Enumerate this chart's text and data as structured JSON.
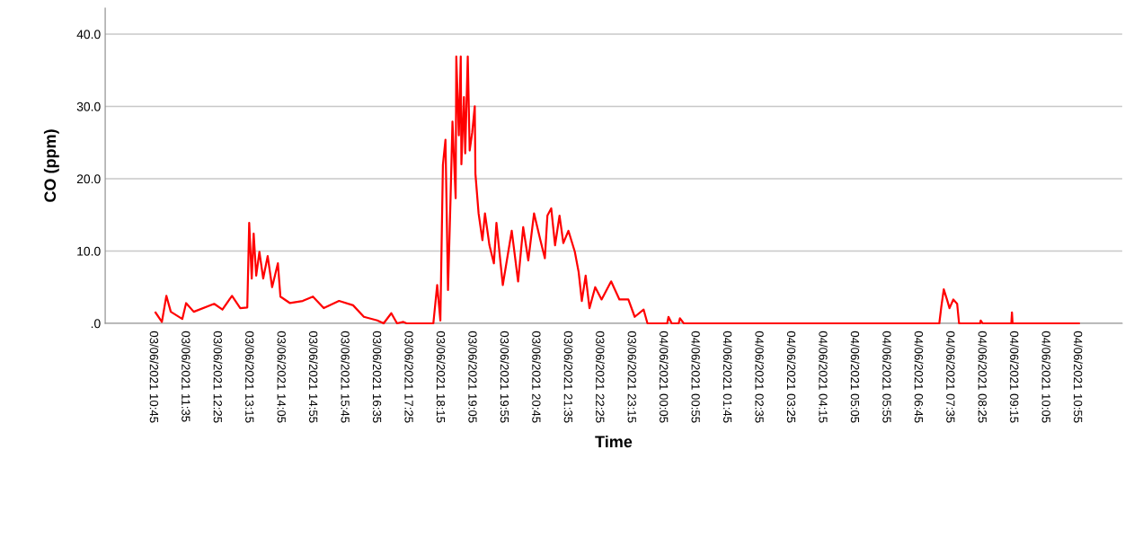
{
  "chart_data": {
    "type": "line",
    "xlabel": "Time",
    "ylabel": "CO (ppm)",
    "x": [
      "2021-06-03T10:49",
      "2021-06-03T10:59",
      "2021-06-03T11:06",
      "2021-06-03T11:13",
      "2021-06-03T11:31",
      "2021-06-03T11:37",
      "2021-06-03T11:49",
      "2021-06-03T12:21",
      "2021-06-03T12:34",
      "2021-06-03T12:49",
      "2021-06-03T13:02",
      "2021-06-03T13:13",
      "2021-06-03T13:16",
      "2021-06-03T13:20",
      "2021-06-03T13:23",
      "2021-06-03T13:27",
      "2021-06-03T13:32",
      "2021-06-03T13:38",
      "2021-06-03T13:45",
      "2021-06-03T13:52",
      "2021-06-03T14:01",
      "2021-06-03T14:05",
      "2021-06-03T14:20",
      "2021-06-03T14:40",
      "2021-06-03T14:56",
      "2021-06-03T15:13",
      "2021-06-03T15:37",
      "2021-06-03T15:59",
      "2021-06-03T16:16",
      "2021-06-03T16:37",
      "2021-06-03T16:47",
      "2021-06-03T16:59",
      "2021-06-03T17:08",
      "2021-06-03T17:18",
      "2021-06-03T17:23",
      "2021-06-03T18:05",
      "2021-06-03T18:11",
      "2021-06-03T18:16",
      "2021-06-03T18:20",
      "2021-06-03T18:24",
      "2021-06-03T18:28",
      "2021-06-03T18:32",
      "2021-06-03T18:35",
      "2021-06-03T18:40",
      "2021-06-03T18:41",
      "2021-06-03T18:45",
      "2021-06-03T18:48",
      "2021-06-03T18:49",
      "2021-06-03T18:53",
      "2021-06-03T18:55",
      "2021-06-03T18:59",
      "2021-06-03T19:02",
      "2021-06-03T19:06",
      "2021-06-03T19:10",
      "2021-06-03T19:11",
      "2021-06-03T19:16",
      "2021-06-03T19:22",
      "2021-06-03T19:26",
      "2021-06-03T19:33",
      "2021-06-03T19:40",
      "2021-06-03T19:44",
      "2021-06-03T19:54",
      "2021-06-03T20:08",
      "2021-06-03T20:18",
      "2021-06-03T20:26",
      "2021-06-03T20:34",
      "2021-06-03T20:43",
      "2021-06-03T20:53",
      "2021-06-03T21:00",
      "2021-06-03T21:04",
      "2021-06-03T21:10",
      "2021-06-03T21:16",
      "2021-06-03T21:23",
      "2021-06-03T21:29",
      "2021-06-03T21:37",
      "2021-06-03T21:47",
      "2021-06-03T21:53",
      "2021-06-03T21:58",
      "2021-06-03T22:04",
      "2021-06-03T22:10",
      "2021-06-03T22:19",
      "2021-06-03T22:29",
      "2021-06-03T22:44",
      "2021-06-03T22:57",
      "2021-06-03T23:11",
      "2021-06-03T23:21",
      "2021-06-03T23:35",
      "2021-06-03T23:41",
      "2021-06-04T00:12",
      "2021-06-04T00:14",
      "2021-06-04T00:19",
      "2021-06-04T00:30",
      "2021-06-04T00:32",
      "2021-06-04T00:38",
      "2021-06-04T07:19",
      "2021-06-04T07:22",
      "2021-06-04T07:26",
      "2021-06-04T07:31",
      "2021-06-04T07:35",
      "2021-06-04T07:41",
      "2021-06-04T07:47",
      "2021-06-04T07:50",
      "2021-06-04T08:23",
      "2021-06-04T08:24",
      "2021-06-04T08:27",
      "2021-06-04T09:12",
      "2021-06-04T09:13",
      "2021-06-04T09:14",
      "2021-06-04T10:58"
    ],
    "series": [
      {
        "color": "#ff0000",
        "values": [
          1.5,
          0.2,
          3.8,
          1.6,
          0.6,
          2.8,
          1.6,
          2.7,
          1.9,
          3.8,
          2.1,
          2.2,
          13.9,
          6.2,
          12.4,
          6.6,
          9.9,
          6.2,
          9.3,
          5.0,
          8.3,
          3.7,
          2.8,
          3.1,
          3.7,
          2.1,
          3.1,
          2.5,
          0.9,
          0.4,
          0,
          1.4,
          0,
          0.2,
          0,
          0,
          5.3,
          0.4,
          21.9,
          25.4,
          4.6,
          17.3,
          27.9,
          17.3,
          36.9,
          26.0,
          36.9,
          22.0,
          31.3,
          23.5,
          36.9,
          23.9,
          26.4,
          30.0,
          20.7,
          15.2,
          11.5,
          15.2,
          10.8,
          8.3,
          13.9,
          5.3,
          12.8,
          5.8,
          13.3,
          8.7,
          15.2,
          11.5,
          9.0,
          14.9,
          15.9,
          10.8,
          14.9,
          11.1,
          12.8,
          9.9,
          7.1,
          3.1,
          6.6,
          2.1,
          5.0,
          3.3,
          5.8,
          3.3,
          3.3,
          0.9,
          1.9,
          0,
          0,
          0.9,
          0,
          0,
          0.7,
          0,
          0,
          2.2,
          4.7,
          3.3,
          2.1,
          3.3,
          2.7,
          0,
          0,
          0.4,
          0,
          0,
          1.5,
          0,
          0
        ]
      }
    ],
    "xlim": [
      "2021-06-03T09:30",
      "2021-06-04T12:06"
    ],
    "xticks": [
      {
        "value": "2021-06-03T10:45",
        "label": "03/06/2021 10:45"
      },
      {
        "value": "2021-06-03T11:35",
        "label": "03/06/2021 11:35"
      },
      {
        "value": "2021-06-03T12:25",
        "label": "03/06/2021 12:25"
      },
      {
        "value": "2021-06-03T13:15",
        "label": "03/06/2021 13:15"
      },
      {
        "value": "2021-06-03T14:05",
        "label": "03/06/2021 14:05"
      },
      {
        "value": "2021-06-03T14:55",
        "label": "03/06/2021 14:55"
      },
      {
        "value": "2021-06-03T15:45",
        "label": "03/06/2021 15:45"
      },
      {
        "value": "2021-06-03T16:35",
        "label": "03/06/2021 16:35"
      },
      {
        "value": "2021-06-03T17:25",
        "label": "03/06/2021 17:25"
      },
      {
        "value": "2021-06-03T18:15",
        "label": "03/06/2021 18:15"
      },
      {
        "value": "2021-06-03T19:05",
        "label": "03/06/2021 19:05"
      },
      {
        "value": "2021-06-03T19:55",
        "label": "03/06/2021 19:55"
      },
      {
        "value": "2021-06-03T20:45",
        "label": "03/06/2021 20:45"
      },
      {
        "value": "2021-06-03T21:35",
        "label": "03/06/2021 21:35"
      },
      {
        "value": "2021-06-03T22:25",
        "label": "03/06/2021 22:25"
      },
      {
        "value": "2021-06-03T23:15",
        "label": "03/06/2021 23:15"
      },
      {
        "value": "2021-06-04T00:05",
        "label": "04/06/2021 00:05"
      },
      {
        "value": "2021-06-04T00:55",
        "label": "04/06/2021 00:55"
      },
      {
        "value": "2021-06-04T01:45",
        "label": "04/06/2021 01:45"
      },
      {
        "value": "2021-06-04T02:35",
        "label": "04/06/2021 02:35"
      },
      {
        "value": "2021-06-04T03:25",
        "label": "04/06/2021 03:25"
      },
      {
        "value": "2021-06-04T04:15",
        "label": "04/06/2021 04:15"
      },
      {
        "value": "2021-06-04T05:05",
        "label": "04/06/2021 05:05"
      },
      {
        "value": "2021-06-04T05:55",
        "label": "04/06/2021 05:55"
      },
      {
        "value": "2021-06-04T06:45",
        "label": "04/06/2021 06:45"
      },
      {
        "value": "2021-06-04T07:35",
        "label": "04/06/2021 07:35"
      },
      {
        "value": "2021-06-04T08:25",
        "label": "04/06/2021 08:25"
      },
      {
        "value": "2021-06-04T09:15",
        "label": "04/06/2021 09:15"
      },
      {
        "value": "2021-06-04T10:05",
        "label": "04/06/2021 10:05"
      },
      {
        "value": "2021-06-04T10:55",
        "label": "04/06/2021 10:55"
      }
    ],
    "ylim": [
      0,
      43.6
    ],
    "yticks": [
      {
        "value": 0,
        "label": ".0"
      },
      {
        "value": 10,
        "label": "10.0"
      },
      {
        "value": 20,
        "label": "20.0"
      },
      {
        "value": 30,
        "label": "30.0"
      },
      {
        "value": 40,
        "label": "40.0"
      }
    ],
    "grid": "y",
    "marker": "none",
    "line_style": "solid"
  }
}
